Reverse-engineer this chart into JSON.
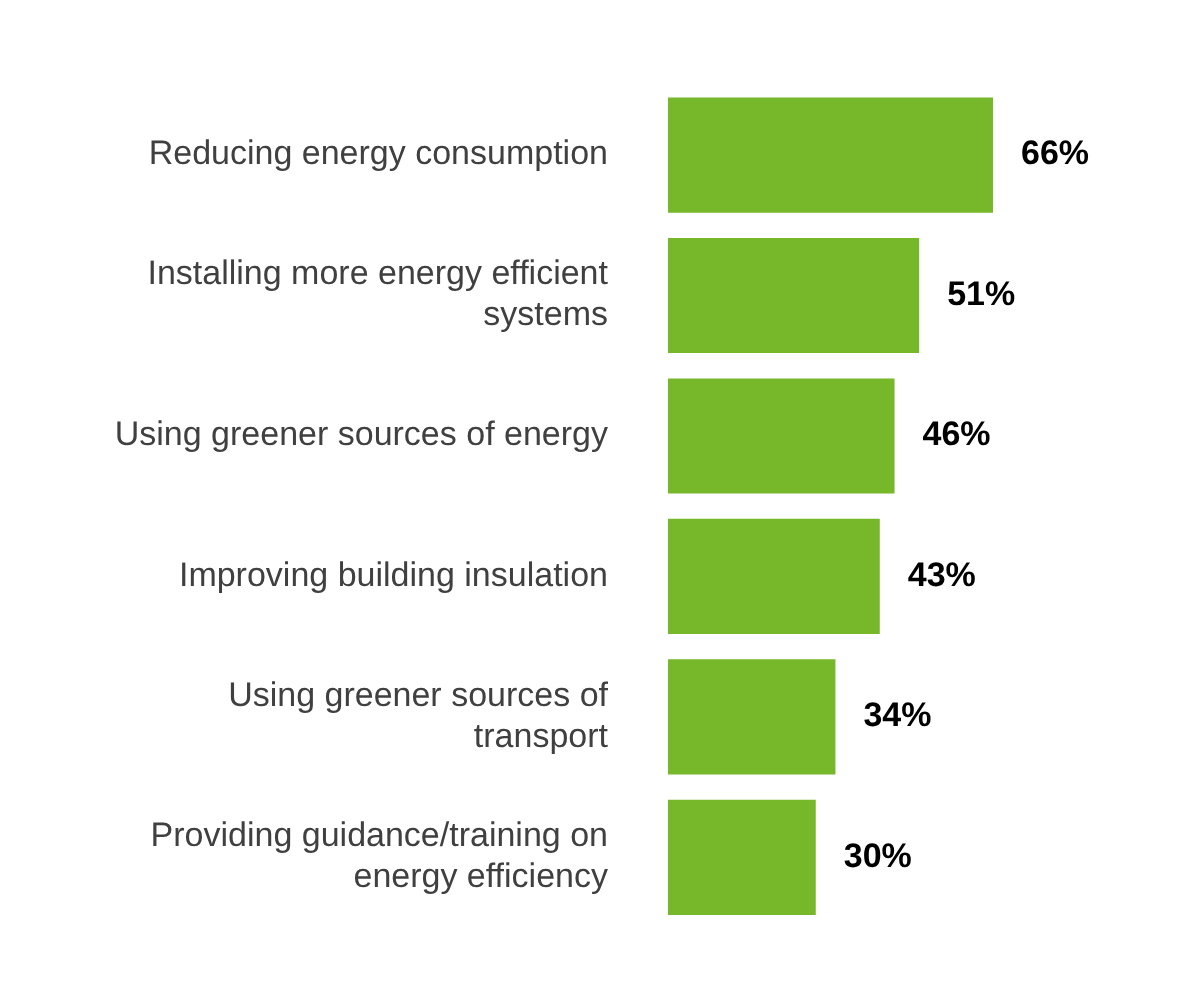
{
  "chart_data": {
    "type": "bar",
    "orientation": "horizontal",
    "categories": [
      "Reducing energy consumption",
      "Installing more energy efficient systems",
      "Using greener sources of energy",
      "Improving building insulation",
      "Using greener sources of transport",
      "Providing guidance/training on energy efficiency"
    ],
    "values": [
      66,
      51,
      46,
      43,
      34,
      30
    ],
    "value_labels": [
      "66%",
      "51%",
      "46%",
      "43%",
      "34%",
      "30%"
    ],
    "color": "#76b82a",
    "tick_labels": "y",
    "legend": false
  }
}
